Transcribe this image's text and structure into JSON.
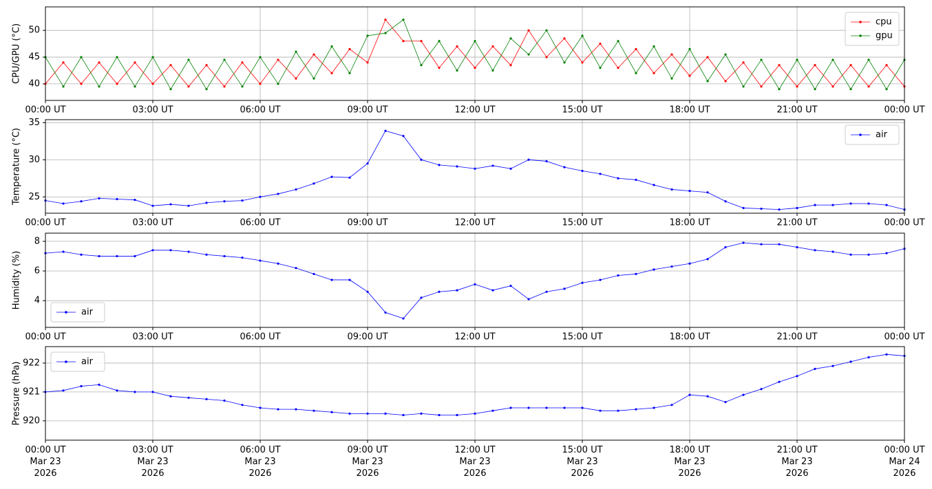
{
  "chart_data": [
    {
      "type": "line",
      "ylabel": "CPU/GPU (°C)",
      "legend": "upper right",
      "grid": true,
      "xlim": [
        "2026-03-23 00:00",
        "2026-03-24 00:00"
      ],
      "xticks": [
        {
          "value": "2026-03-23 00:00",
          "label": "00:00 UT"
        },
        {
          "value": "2026-03-23 03:00",
          "label": "03:00 UT"
        },
        {
          "value": "2026-03-23 06:00",
          "label": "06:00 UT"
        },
        {
          "value": "2026-03-23 09:00",
          "label": "09:00 UT"
        },
        {
          "value": "2026-03-23 12:00",
          "label": "12:00 UT"
        },
        {
          "value": "2026-03-23 15:00",
          "label": "15:00 UT"
        },
        {
          "value": "2026-03-23 18:00",
          "label": "18:00 UT"
        },
        {
          "value": "2026-03-23 21:00",
          "label": "21:00 UT"
        },
        {
          "value": "2026-03-24 00:00",
          "label": "00:00 UT"
        }
      ],
      "ylim": [
        36.9,
        54.4
      ],
      "yticks": [
        40,
        45,
        50
      ],
      "x": [
        "2026-03-23 00:00",
        "2026-03-23 00:30",
        "2026-03-23 01:00",
        "2026-03-23 01:30",
        "2026-03-23 02:00",
        "2026-03-23 02:30",
        "2026-03-23 03:00",
        "2026-03-23 03:30",
        "2026-03-23 04:00",
        "2026-03-23 04:30",
        "2026-03-23 05:00",
        "2026-03-23 05:30",
        "2026-03-23 06:00",
        "2026-03-23 06:30",
        "2026-03-23 07:00",
        "2026-03-23 07:30",
        "2026-03-23 08:00",
        "2026-03-23 08:30",
        "2026-03-23 09:00",
        "2026-03-23 09:30",
        "2026-03-23 10:00",
        "2026-03-23 10:30",
        "2026-03-23 11:00",
        "2026-03-23 11:30",
        "2026-03-23 12:00",
        "2026-03-23 12:30",
        "2026-03-23 13:00",
        "2026-03-23 13:30",
        "2026-03-23 14:00",
        "2026-03-23 14:30",
        "2026-03-23 15:00",
        "2026-03-23 15:30",
        "2026-03-23 16:00",
        "2026-03-23 16:30",
        "2026-03-23 17:00",
        "2026-03-23 17:30",
        "2026-03-23 18:00",
        "2026-03-23 18:30",
        "2026-03-23 19:00",
        "2026-03-23 19:30",
        "2026-03-23 20:00",
        "2026-03-23 20:30",
        "2026-03-23 21:00",
        "2026-03-23 21:30",
        "2026-03-23 22:00",
        "2026-03-23 22:30",
        "2026-03-23 23:00",
        "2026-03-23 23:30",
        "2026-03-24 00:00"
      ],
      "series": [
        {
          "name": "cpu",
          "color": "#ff0000",
          "values": [
            40,
            44,
            40,
            44,
            40,
            44,
            40,
            43.5,
            39.5,
            43.5,
            39.5,
            44,
            40,
            44.5,
            41,
            45.5,
            42,
            46.5,
            44,
            52,
            48,
            48,
            43,
            47,
            43,
            47,
            43.5,
            50,
            45,
            48.5,
            44,
            47.5,
            43,
            46.5,
            42,
            45.5,
            41.5,
            45,
            40.5,
            44,
            39.5,
            43.5,
            39.5,
            43.5,
            39.5,
            43.5,
            39.5,
            43.5,
            39.5
          ]
        },
        {
          "name": "gpu",
          "color": "#008000",
          "values": [
            45,
            39.5,
            45,
            39.5,
            45,
            39.5,
            45,
            39,
            44.5,
            39,
            44.5,
            39.5,
            45,
            40,
            46,
            41,
            47,
            42,
            49,
            49.5,
            52,
            43.5,
            48,
            42.5,
            48,
            42.5,
            48.5,
            45.5,
            50,
            44,
            49,
            43,
            48,
            42,
            47,
            41,
            46.5,
            40.5,
            45.5,
            39.5,
            44.5,
            39,
            44.5,
            39,
            44.5,
            39,
            44.5,
            39,
            44.5
          ]
        }
      ]
    },
    {
      "type": "line",
      "ylabel": "Temperature (°C)",
      "legend": "upper right",
      "grid": true,
      "xlim": [
        "2026-03-23 00:00",
        "2026-03-24 00:00"
      ],
      "xticks": [
        {
          "value": "2026-03-23 00:00",
          "label": "00:00 UT"
        },
        {
          "value": "2026-03-23 03:00",
          "label": "03:00 UT"
        },
        {
          "value": "2026-03-23 06:00",
          "label": "06:00 UT"
        },
        {
          "value": "2026-03-23 09:00",
          "label": "09:00 UT"
        },
        {
          "value": "2026-03-23 12:00",
          "label": "12:00 UT"
        },
        {
          "value": "2026-03-23 15:00",
          "label": "15:00 UT"
        },
        {
          "value": "2026-03-23 18:00",
          "label": "18:00 UT"
        },
        {
          "value": "2026-03-23 21:00",
          "label": "21:00 UT"
        },
        {
          "value": "2026-03-24 00:00",
          "label": "00:00 UT"
        }
      ],
      "ylim": [
        22.8,
        35.4
      ],
      "yticks": [
        25,
        30,
        35
      ],
      "x": [
        "2026-03-23 00:00",
        "2026-03-23 00:30",
        "2026-03-23 01:00",
        "2026-03-23 01:30",
        "2026-03-23 02:00",
        "2026-03-23 02:30",
        "2026-03-23 03:00",
        "2026-03-23 03:30",
        "2026-03-23 04:00",
        "2026-03-23 04:30",
        "2026-03-23 05:00",
        "2026-03-23 05:30",
        "2026-03-23 06:00",
        "2026-03-23 06:30",
        "2026-03-23 07:00",
        "2026-03-23 07:30",
        "2026-03-23 08:00",
        "2026-03-23 08:30",
        "2026-03-23 09:00",
        "2026-03-23 09:30",
        "2026-03-23 10:00",
        "2026-03-23 10:30",
        "2026-03-23 11:00",
        "2026-03-23 11:30",
        "2026-03-23 12:00",
        "2026-03-23 12:30",
        "2026-03-23 13:00",
        "2026-03-23 13:30",
        "2026-03-23 14:00",
        "2026-03-23 14:30",
        "2026-03-23 15:00",
        "2026-03-23 15:30",
        "2026-03-23 16:00",
        "2026-03-23 16:30",
        "2026-03-23 17:00",
        "2026-03-23 17:30",
        "2026-03-23 18:00",
        "2026-03-23 18:30",
        "2026-03-23 19:00",
        "2026-03-23 19:30",
        "2026-03-23 20:00",
        "2026-03-23 20:30",
        "2026-03-23 21:00",
        "2026-03-23 21:30",
        "2026-03-23 22:00",
        "2026-03-23 22:30",
        "2026-03-23 23:00",
        "2026-03-23 23:30",
        "2026-03-24 00:00"
      ],
      "series": [
        {
          "name": "air",
          "color": "#0000ff",
          "values": [
            24.5,
            24.1,
            24.4,
            24.8,
            24.7,
            24.6,
            23.8,
            24.0,
            23.8,
            24.2,
            24.4,
            24.5,
            25.0,
            25.4,
            26.0,
            26.8,
            27.7,
            27.6,
            29.5,
            33.9,
            33.2,
            30.0,
            29.3,
            29.1,
            28.8,
            29.2,
            28.8,
            30.0,
            29.8,
            29.0,
            28.5,
            28.1,
            27.5,
            27.3,
            26.6,
            26.0,
            25.8,
            25.6,
            24.4,
            23.5,
            23.4,
            23.3,
            23.5,
            23.9,
            23.9,
            24.1,
            24.1,
            23.9,
            23.3
          ]
        }
      ]
    },
    {
      "type": "line",
      "ylabel": "Humidity (%)",
      "legend": "lower left",
      "grid": true,
      "xlim": [
        "2026-03-23 00:00",
        "2026-03-24 00:00"
      ],
      "xticks": [
        {
          "value": "2026-03-23 00:00",
          "label": "00:00 UT"
        },
        {
          "value": "2026-03-23 03:00",
          "label": "03:00 UT"
        },
        {
          "value": "2026-03-23 06:00",
          "label": "06:00 UT"
        },
        {
          "value": "2026-03-23 09:00",
          "label": "09:00 UT"
        },
        {
          "value": "2026-03-23 12:00",
          "label": "12:00 UT"
        },
        {
          "value": "2026-03-23 15:00",
          "label": "15:00 UT"
        },
        {
          "value": "2026-03-23 18:00",
          "label": "18:00 UT"
        },
        {
          "value": "2026-03-23 21:00",
          "label": "21:00 UT"
        },
        {
          "value": "2026-03-24 00:00",
          "label": "00:00 UT"
        }
      ],
      "ylim": [
        2.2,
        8.55
      ],
      "yticks": [
        4,
        6,
        8
      ],
      "x": [
        "2026-03-23 00:00",
        "2026-03-23 00:30",
        "2026-03-23 01:00",
        "2026-03-23 01:30",
        "2026-03-23 02:00",
        "2026-03-23 02:30",
        "2026-03-23 03:00",
        "2026-03-23 03:30",
        "2026-03-23 04:00",
        "2026-03-23 04:30",
        "2026-03-23 05:00",
        "2026-03-23 05:30",
        "2026-03-23 06:00",
        "2026-03-23 06:30",
        "2026-03-23 07:00",
        "2026-03-23 07:30",
        "2026-03-23 08:00",
        "2026-03-23 08:30",
        "2026-03-23 09:00",
        "2026-03-23 09:30",
        "2026-03-23 10:00",
        "2026-03-23 10:30",
        "2026-03-23 11:00",
        "2026-03-23 11:30",
        "2026-03-23 12:00",
        "2026-03-23 12:30",
        "2026-03-23 13:00",
        "2026-03-23 13:30",
        "2026-03-23 14:00",
        "2026-03-23 14:30",
        "2026-03-23 15:00",
        "2026-03-23 15:30",
        "2026-03-23 16:00",
        "2026-03-23 16:30",
        "2026-03-23 17:00",
        "2026-03-23 17:30",
        "2026-03-23 18:00",
        "2026-03-23 18:30",
        "2026-03-23 19:00",
        "2026-03-23 19:30",
        "2026-03-23 20:00",
        "2026-03-23 20:30",
        "2026-03-23 21:00",
        "2026-03-23 21:30",
        "2026-03-23 22:00",
        "2026-03-23 22:30",
        "2026-03-23 23:00",
        "2026-03-23 23:30",
        "2026-03-24 00:00"
      ],
      "series": [
        {
          "name": "air",
          "color": "#0000ff",
          "values": [
            7.2,
            7.3,
            7.1,
            7.0,
            7.0,
            7.0,
            7.4,
            7.4,
            7.3,
            7.1,
            7.0,
            6.9,
            6.7,
            6.5,
            6.2,
            5.8,
            5.4,
            5.4,
            4.6,
            3.2,
            2.8,
            4.2,
            4.6,
            4.7,
            5.1,
            4.7,
            5.0,
            4.1,
            4.6,
            4.8,
            5.2,
            5.4,
            5.7,
            5.8,
            6.1,
            6.3,
            6.5,
            6.8,
            7.6,
            7.9,
            7.8,
            7.8,
            7.6,
            7.4,
            7.3,
            7.1,
            7.1,
            7.2,
            7.5
          ]
        }
      ]
    },
    {
      "type": "line",
      "ylabel": "Pressure (hPa)",
      "legend": "upper left",
      "grid": true,
      "xlim": [
        "2026-03-23 00:00",
        "2026-03-24 00:00"
      ],
      "xticks": [
        {
          "value": "2026-03-23 00:00",
          "label": "00:00 UT\nMar 23\n2026"
        },
        {
          "value": "2026-03-23 03:00",
          "label": "03:00 UT\nMar 23\n2026"
        },
        {
          "value": "2026-03-23 06:00",
          "label": "06:00 UT\nMar 23\n2026"
        },
        {
          "value": "2026-03-23 09:00",
          "label": "09:00 UT\nMar 23\n2026"
        },
        {
          "value": "2026-03-23 12:00",
          "label": "12:00 UT\nMar 23\n2026"
        },
        {
          "value": "2026-03-23 15:00",
          "label": "15:00 UT\nMar 23\n2026"
        },
        {
          "value": "2026-03-23 18:00",
          "label": "18:00 UT\nMar 23\n2026"
        },
        {
          "value": "2026-03-23 21:00",
          "label": "21:00 UT\nMar 23\n2026"
        },
        {
          "value": "2026-03-24 00:00",
          "label": "00:00 UT\nMar 24\n2026"
        }
      ],
      "ylim": [
        919.33,
        922.57
      ],
      "yticks": [
        920,
        921,
        922
      ],
      "x": [
        "2026-03-23 00:00",
        "2026-03-23 00:30",
        "2026-03-23 01:00",
        "2026-03-23 01:30",
        "2026-03-23 02:00",
        "2026-03-23 02:30",
        "2026-03-23 03:00",
        "2026-03-23 03:30",
        "2026-03-23 04:00",
        "2026-03-23 04:30",
        "2026-03-23 05:00",
        "2026-03-23 05:30",
        "2026-03-23 06:00",
        "2026-03-23 06:30",
        "2026-03-23 07:00",
        "2026-03-23 07:30",
        "2026-03-23 08:00",
        "2026-03-23 08:30",
        "2026-03-23 09:00",
        "2026-03-23 09:30",
        "2026-03-23 10:00",
        "2026-03-23 10:30",
        "2026-03-23 11:00",
        "2026-03-23 11:30",
        "2026-03-23 12:00",
        "2026-03-23 12:30",
        "2026-03-23 13:00",
        "2026-03-23 13:30",
        "2026-03-23 14:00",
        "2026-03-23 14:30",
        "2026-03-23 15:00",
        "2026-03-23 15:30",
        "2026-03-23 16:00",
        "2026-03-23 16:30",
        "2026-03-23 17:00",
        "2026-03-23 17:30",
        "2026-03-23 18:00",
        "2026-03-23 18:30",
        "2026-03-23 19:00",
        "2026-03-23 19:30",
        "2026-03-23 20:00",
        "2026-03-23 20:30",
        "2026-03-23 21:00",
        "2026-03-23 21:30",
        "2026-03-23 22:00",
        "2026-03-23 22:30",
        "2026-03-23 23:00",
        "2026-03-23 23:30",
        "2026-03-24 00:00"
      ],
      "series": [
        {
          "name": "air",
          "color": "#0000ff",
          "values": [
            921.0,
            921.05,
            921.2,
            921.25,
            921.05,
            921.0,
            921.0,
            920.85,
            920.8,
            920.75,
            920.7,
            920.55,
            920.45,
            920.4,
            920.4,
            920.35,
            920.3,
            920.25,
            920.25,
            920.25,
            920.2,
            920.25,
            920.2,
            920.2,
            920.25,
            920.35,
            920.45,
            920.45,
            920.45,
            920.45,
            920.45,
            920.35,
            920.35,
            920.4,
            920.45,
            920.55,
            920.9,
            920.85,
            920.65,
            920.9,
            921.1,
            921.35,
            921.55,
            921.8,
            921.9,
            922.05,
            922.2,
            922.3,
            922.25
          ]
        }
      ]
    }
  ]
}
